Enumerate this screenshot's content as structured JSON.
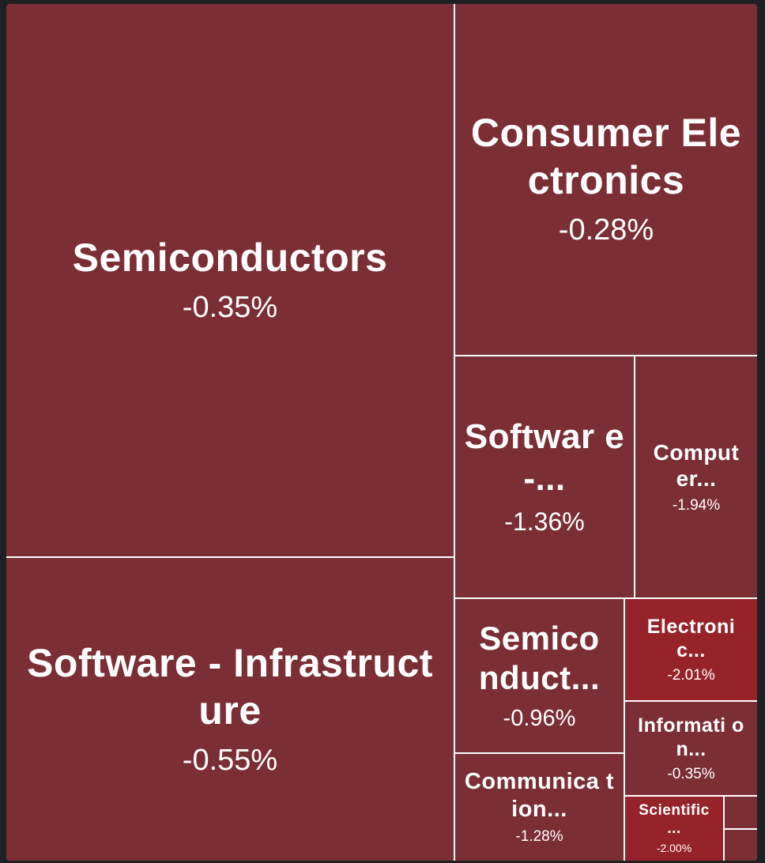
{
  "chart_data": {
    "type": "treemap",
    "colors": {
      "background": "#1f2024",
      "border": "#ffffff",
      "mild_negative": "#7b2e34",
      "strong_negative": "#97232a",
      "text": "#ffffff"
    },
    "tiles": [
      {
        "label": "Semiconductors",
        "value": "-0.35%",
        "change": -0.35
      },
      {
        "label": "Software - Infrastructure",
        "value": "-0.55%",
        "change": -0.55
      },
      {
        "label": "Consumer Electronics",
        "value": "-0.28%",
        "change": -0.28
      },
      {
        "label": "Softwar e -...",
        "value": "-1.36%",
        "change": -1.36
      },
      {
        "label": "Comput er...",
        "value": "-1.94%",
        "change": -1.94
      },
      {
        "label": "Semico nduct...",
        "value": "-0.96%",
        "change": -0.96
      },
      {
        "label": "Electroni c...",
        "value": "-2.01%",
        "change": -2.01
      },
      {
        "label": "Informati on...",
        "value": "-0.35%",
        "change": -0.35
      },
      {
        "label": "Communica tion...",
        "value": "-1.28%",
        "change": -1.28
      },
      {
        "label": "Scientific ...",
        "value": "-2.00%",
        "change": -2.0
      },
      {
        "label": "",
        "value": "",
        "change": null
      },
      {
        "label": "",
        "value": "",
        "change": null
      }
    ]
  }
}
